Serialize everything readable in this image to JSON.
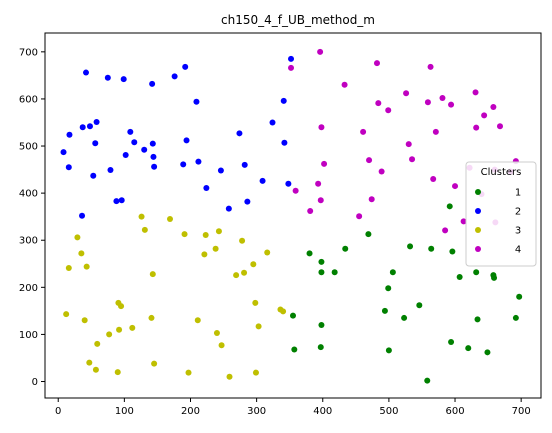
{
  "chart_data": {
    "type": "scatter",
    "title": "ch150_4_f_UB_method_m",
    "xlabel": "",
    "ylabel": "",
    "xlim": [
      -20,
      730
    ],
    "ylim": [
      -35,
      740
    ],
    "xticks": [
      0,
      100,
      200,
      300,
      400,
      500,
      600,
      700
    ],
    "yticks": [
      0,
      100,
      200,
      300,
      400,
      500,
      600,
      700
    ],
    "grid": false,
    "legend": {
      "title": "Clusters",
      "placement": "right"
    },
    "series": [
      {
        "name": "1",
        "color": "#008000",
        "points": [
          [
            355,
            140
          ],
          [
            357,
            68
          ],
          [
            380,
            272
          ],
          [
            398,
            232
          ],
          [
            398,
            254
          ],
          [
            398,
            120
          ],
          [
            397,
            73
          ],
          [
            418,
            232
          ],
          [
            434,
            282
          ],
          [
            469,
            313
          ],
          [
            494,
            150
          ],
          [
            499,
            198
          ],
          [
            500,
            66
          ],
          [
            506,
            232
          ],
          [
            523,
            135
          ],
          [
            532,
            287
          ],
          [
            546,
            162
          ],
          [
            558,
            2
          ],
          [
            564,
            282
          ],
          [
            592,
            372
          ],
          [
            594,
            84
          ],
          [
            596,
            276
          ],
          [
            607,
            222
          ],
          [
            620,
            71
          ],
          [
            632,
            232
          ],
          [
            634,
            132
          ],
          [
            649,
            62
          ],
          [
            658,
            226
          ],
          [
            659,
            220
          ],
          [
            692,
            135
          ],
          [
            697,
            180
          ]
        ]
      },
      {
        "name": "2",
        "color": "#0000ff",
        "points": [
          [
            8,
            487
          ],
          [
            16,
            455
          ],
          [
            17,
            524
          ],
          [
            36,
            352
          ],
          [
            37,
            540
          ],
          [
            42,
            656
          ],
          [
            48,
            542
          ],
          [
            53,
            437
          ],
          [
            56,
            506
          ],
          [
            58,
            551
          ],
          [
            75,
            645
          ],
          [
            79,
            449
          ],
          [
            88,
            383
          ],
          [
            96,
            385
          ],
          [
            99,
            642
          ],
          [
            102,
            481
          ],
          [
            109,
            530
          ],
          [
            115,
            508
          ],
          [
            130,
            492
          ],
          [
            142,
            632
          ],
          [
            143,
            505
          ],
          [
            144,
            477
          ],
          [
            145,
            456
          ],
          [
            176,
            648
          ],
          [
            189,
            461
          ],
          [
            192,
            668
          ],
          [
            194,
            512
          ],
          [
            209,
            594
          ],
          [
            212,
            467
          ],
          [
            224,
            411
          ],
          [
            246,
            448
          ],
          [
            258,
            367
          ],
          [
            274,
            527
          ],
          [
            282,
            460
          ],
          [
            286,
            382
          ],
          [
            309,
            426
          ],
          [
            324,
            550
          ],
          [
            341,
            596
          ],
          [
            342,
            507
          ],
          [
            348,
            420
          ],
          [
            352,
            685
          ]
        ]
      },
      {
        "name": "3",
        "color": "#bfbf00",
        "points": [
          [
            12,
            143
          ],
          [
            16,
            241
          ],
          [
            29,
            306
          ],
          [
            35,
            272
          ],
          [
            40,
            130
          ],
          [
            43,
            244
          ],
          [
            47,
            40
          ],
          [
            57,
            25
          ],
          [
            59,
            80
          ],
          [
            77,
            100
          ],
          [
            90,
            20
          ],
          [
            91,
            167
          ],
          [
            92,
            110
          ],
          [
            95,
            160
          ],
          [
            112,
            114
          ],
          [
            126,
            350
          ],
          [
            131,
            322
          ],
          [
            141,
            135
          ],
          [
            143,
            228
          ],
          [
            145,
            38
          ],
          [
            169,
            345
          ],
          [
            191,
            313
          ],
          [
            197,
            19
          ],
          [
            211,
            130
          ],
          [
            221,
            270
          ],
          [
            223,
            311
          ],
          [
            238,
            282
          ],
          [
            240,
            103
          ],
          [
            243,
            319
          ],
          [
            247,
            77
          ],
          [
            259,
            10
          ],
          [
            269,
            226
          ],
          [
            278,
            299
          ],
          [
            281,
            231
          ],
          [
            295,
            249
          ],
          [
            298,
            167
          ],
          [
            299,
            19
          ],
          [
            303,
            117
          ],
          [
            316,
            274
          ],
          [
            336,
            153
          ],
          [
            340,
            149
          ]
        ]
      },
      {
        "name": "4",
        "color": "#c000c0",
        "points": [
          [
            352,
            666
          ],
          [
            359,
            405
          ],
          [
            381,
            362
          ],
          [
            393,
            420
          ],
          [
            396,
            700
          ],
          [
            397,
            385
          ],
          [
            398,
            540
          ],
          [
            402,
            462
          ],
          [
            433,
            630
          ],
          [
            455,
            351
          ],
          [
            461,
            530
          ],
          [
            470,
            470
          ],
          [
            474,
            387
          ],
          [
            482,
            676
          ],
          [
            484,
            591
          ],
          [
            489,
            446
          ],
          [
            499,
            576
          ],
          [
            526,
            612
          ],
          [
            530,
            504
          ],
          [
            535,
            472
          ],
          [
            559,
            593
          ],
          [
            563,
            668
          ],
          [
            567,
            430
          ],
          [
            571,
            530
          ],
          [
            581,
            602
          ],
          [
            585,
            321
          ],
          [
            594,
            588
          ],
          [
            600,
            415
          ],
          [
            613,
            340
          ],
          [
            622,
            454
          ],
          [
            631,
            614
          ],
          [
            632,
            539
          ],
          [
            640,
            398
          ],
          [
            644,
            565
          ],
          [
            658,
            583
          ],
          [
            660,
            450
          ],
          [
            661,
            338
          ],
          [
            668,
            542
          ],
          [
            684,
            446
          ],
          [
            692,
            468
          ]
        ]
      }
    ]
  }
}
